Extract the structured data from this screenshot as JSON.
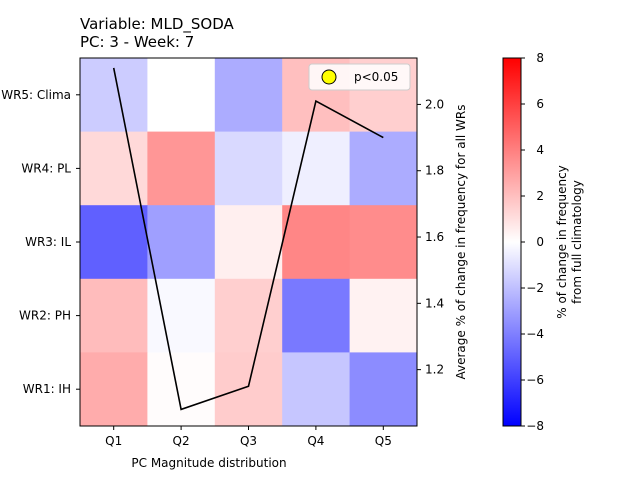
{
  "chart_data": {
    "type": "heatmap",
    "title_line1": "Variable: MLD_SODA",
    "title_line2": "PC: 3 - Week: 7",
    "xlabel": "PC Magnitude distribution",
    "x_categories": [
      "Q1",
      "Q2",
      "Q3",
      "Q4",
      "Q5"
    ],
    "y_categories_top_to_bottom": [
      "WR5: Clima",
      "WR4: PL",
      "WR3: IL",
      "WR2: PH",
      "WR1: IH"
    ],
    "values_top_to_bottom": [
      [
        -1.6,
        0.0,
        -2.6,
        2.0,
        1.5
      ],
      [
        1.2,
        3.3,
        -1.2,
        -0.5,
        -2.6
      ],
      [
        -5.0,
        -3.0,
        0.5,
        3.8,
        3.6
      ],
      [
        2.1,
        -0.2,
        1.5,
        -4.2,
        0.4
      ],
      [
        2.6,
        0.1,
        1.6,
        -1.8,
        -3.6
      ]
    ],
    "colormap": "bwr",
    "color_range": [
      -8,
      8
    ],
    "colorbar_label_line1": "% of change in frequency",
    "colorbar_label_line2": "from full climatology",
    "colorbar_ticks": [
      "8",
      "6",
      "4",
      "2",
      "0",
      "−2",
      "−4",
      "−6",
      "−8"
    ],
    "line_series": {
      "x": [
        "Q1",
        "Q2",
        "Q3",
        "Q4",
        "Q5"
      ],
      "values": [
        2.11,
        1.08,
        1.15,
        2.01,
        1.9
      ],
      "color": "#000000"
    },
    "right_ylabel": "Average % of change in frequency for all WRs",
    "right_ylim": [
      1.03,
      2.14
    ],
    "right_yticks": [
      "2.0",
      "1.8",
      "1.6",
      "1.4",
      "1.2"
    ],
    "right_ytick_values": [
      2.0,
      1.8,
      1.6,
      1.4,
      1.2
    ],
    "legend": {
      "label": "p<0.05",
      "marker_color": "#ffff00",
      "position": "upper right"
    }
  }
}
